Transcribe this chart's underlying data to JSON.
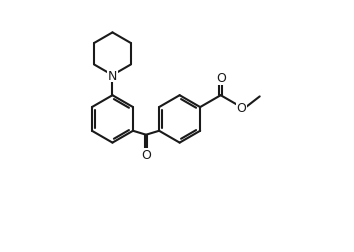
{
  "bg_color": "#ffffff",
  "line_color": "#1a1a1a",
  "lw": 1.5,
  "figsize": [
    3.54,
    2.53
  ],
  "dpi": 100,
  "xlim": [
    0.0,
    10.0
  ],
  "ylim": [
    0.0,
    9.5
  ]
}
